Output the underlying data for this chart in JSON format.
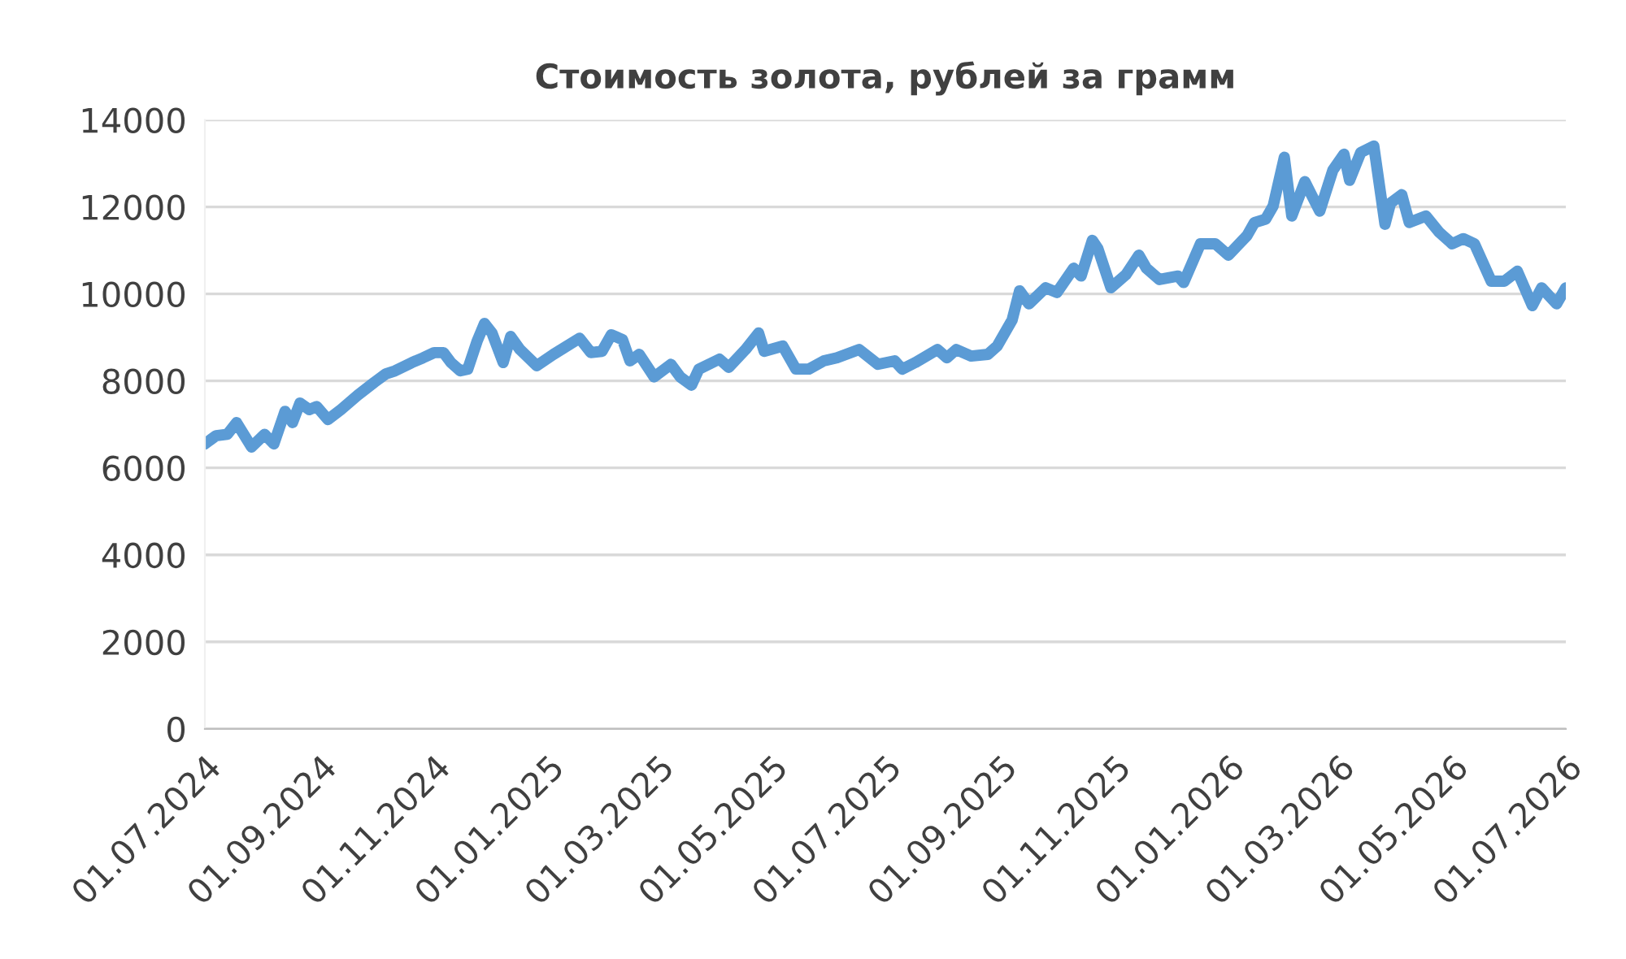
{
  "chart_data": {
    "type": "line",
    "title": "Стоимость золота, рублей за грамм",
    "x": [
      "2024-07-01",
      "2024-07-07",
      "2024-07-13",
      "2024-07-18",
      "2024-07-26",
      "2024-08-02",
      "2024-08-07",
      "2024-08-13",
      "2024-08-17",
      "2024-08-21",
      "2024-08-26",
      "2024-08-30",
      "2024-09-05",
      "2024-09-12",
      "2024-09-21",
      "2024-09-30",
      "2024-10-06",
      "2024-10-11",
      "2024-10-20",
      "2024-10-26",
      "2024-11-01",
      "2024-11-06",
      "2024-11-10",
      "2024-11-15",
      "2024-11-19",
      "2024-11-24",
      "2024-11-28",
      "2024-12-02",
      "2024-12-08",
      "2024-12-12",
      "2024-12-17",
      "2024-12-26",
      "2025-01-04",
      "2025-01-18",
      "2025-01-24",
      "2025-01-30",
      "2025-02-04",
      "2025-02-10",
      "2025-02-14",
      "2025-02-19",
      "2025-02-27",
      "2025-03-08",
      "2025-03-13",
      "2025-03-19",
      "2025-03-23",
      "2025-04-03",
      "2025-04-08",
      "2025-04-17",
      "2025-04-24",
      "2025-04-27",
      "2025-05-07",
      "2025-05-14",
      "2025-05-21",
      "2025-05-29",
      "2025-06-05",
      "2025-06-17",
      "2025-06-27",
      "2025-07-06",
      "2025-07-10",
      "2025-07-17",
      "2025-07-29",
      "2025-08-03",
      "2025-08-08",
      "2025-08-16",
      "2025-08-25",
      "2025-08-30",
      "2025-09-07",
      "2025-09-11",
      "2025-09-16",
      "2025-09-25",
      "2025-10-01",
      "2025-10-10",
      "2025-10-14",
      "2025-10-20",
      "2025-10-23",
      "2025-10-30",
      "2025-11-07",
      "2025-11-14",
      "2025-11-18",
      "2025-11-25",
      "2025-12-05",
      "2025-12-08",
      "2025-12-17",
      "2025-12-25",
      "2026-01-01",
      "2026-01-11",
      "2026-01-15",
      "2026-01-21",
      "2026-01-25",
      "2026-01-31",
      "2026-02-04",
      "2026-02-11",
      "2026-02-19",
      "2026-02-26",
      "2026-03-04",
      "2026-03-07",
      "2026-03-13",
      "2026-03-20",
      "2026-03-26",
      "2026-03-29",
      "2026-04-04",
      "2026-04-08",
      "2026-04-17",
      "2026-04-24",
      "2026-05-01",
      "2026-05-07",
      "2026-05-13",
      "2026-05-22",
      "2026-05-29",
      "2026-06-05",
      "2026-06-13",
      "2026-06-18",
      "2026-06-26",
      "2026-07-01"
    ],
    "series": [
      {
        "color": "#5b9bd5",
        "values": [
          6550,
          6740,
          6770,
          7040,
          6480,
          6770,
          6550,
          7300,
          7040,
          7490,
          7340,
          7410,
          7110,
          7340,
          7670,
          7970,
          8160,
          8230,
          8420,
          8530,
          8650,
          8650,
          8420,
          8230,
          8270,
          8910,
          9320,
          9100,
          8420,
          9020,
          8720,
          8350,
          8610,
          8980,
          8650,
          8680,
          9060,
          8950,
          8460,
          8610,
          8090,
          8380,
          8090,
          7900,
          8270,
          8500,
          8310,
          8720,
          9100,
          8680,
          8800,
          8270,
          8270,
          8460,
          8530,
          8720,
          8380,
          8460,
          8270,
          8420,
          8720,
          8530,
          8720,
          8570,
          8610,
          8800,
          9400,
          10070,
          9770,
          10140,
          10030,
          10590,
          10410,
          11230,
          11040,
          10140,
          10440,
          10890,
          10590,
          10330,
          10410,
          10260,
          11150,
          11150,
          10890,
          11340,
          11640,
          11720,
          12020,
          13140,
          11790,
          12580,
          11900,
          12840,
          13210,
          12610,
          13250,
          13400,
          11600,
          12090,
          12280,
          11640,
          11790,
          11420,
          11150,
          11270,
          11150,
          10290,
          10290,
          10520,
          9730,
          10140,
          9770,
          10140
        ]
      }
    ],
    "xlim": [
      "2024-07-01",
      "2026-07-01"
    ],
    "xticks": [
      {
        "value": "2024-07-01",
        "label": "01.07.2024"
      },
      {
        "value": "2024-09-01",
        "label": "01.09.2024"
      },
      {
        "value": "2024-11-01",
        "label": "01.11.2024"
      },
      {
        "value": "2025-01-01",
        "label": "01.01.2025"
      },
      {
        "value": "2025-03-01",
        "label": "01.03.2025"
      },
      {
        "value": "2025-05-01",
        "label": "01.05.2025"
      },
      {
        "value": "2025-07-01",
        "label": "01.07.2025"
      },
      {
        "value": "2025-09-01",
        "label": "01.09.2025"
      },
      {
        "value": "2025-11-01",
        "label": "01.11.2025"
      },
      {
        "value": "2026-01-01",
        "label": "01.01.2026"
      },
      {
        "value": "2026-03-01",
        "label": "01.03.2026"
      },
      {
        "value": "2026-05-01",
        "label": "01.05.2026"
      },
      {
        "value": "2026-07-01",
        "label": "01.07.2026"
      }
    ],
    "ylim": [
      0,
      14000
    ],
    "yticks": [
      0,
      2000,
      4000,
      6000,
      8000,
      10000,
      12000,
      14000
    ],
    "grid": "y",
    "marker": "none",
    "line_style": "solid"
  }
}
